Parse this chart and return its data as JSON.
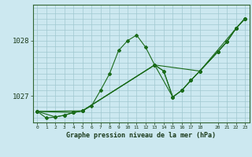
{
  "title": "Graphe pression niveau de la mer (hPa)",
  "bg_color": "#cce8f0",
  "line_color": "#1a6b1a",
  "grid_color": "#a0c8d0",
  "xlim": [
    -0.5,
    23.5
  ],
  "ylim": [
    1026.52,
    1028.65
  ],
  "yticks": [
    1027,
    1028
  ],
  "xticks": [
    0,
    1,
    2,
    3,
    4,
    5,
    6,
    7,
    8,
    9,
    10,
    11,
    12,
    13,
    14,
    15,
    16,
    17,
    18,
    20,
    21,
    22,
    23
  ],
  "hgrid_vals": [
    1026.6,
    1026.7,
    1026.8,
    1026.9,
    1027.0,
    1027.1,
    1027.2,
    1027.3,
    1027.4,
    1027.5,
    1027.6,
    1027.7,
    1027.8,
    1027.9,
    1028.0,
    1028.1,
    1028.2,
    1028.3,
    1028.4,
    1028.5,
    1028.6
  ],
  "line1_x": [
    0,
    1,
    2,
    3,
    4,
    5,
    6,
    7,
    8,
    9,
    10,
    11,
    12,
    13,
    14,
    15,
    16,
    17,
    18,
    20,
    21,
    22,
    23
  ],
  "line1_y": [
    1026.72,
    1026.6,
    1026.62,
    1026.65,
    1026.7,
    1026.73,
    1026.82,
    1027.1,
    1027.4,
    1027.82,
    1028.0,
    1028.1,
    1027.88,
    1027.56,
    1027.45,
    1026.98,
    1027.1,
    1027.28,
    1027.45,
    1027.8,
    1027.98,
    1028.22,
    1028.4
  ],
  "line2_x": [
    0,
    2,
    3,
    4,
    5,
    13,
    14,
    15,
    16,
    17,
    18,
    20,
    21,
    22,
    23
  ],
  "line2_y": [
    1026.72,
    1026.62,
    1026.65,
    1026.7,
    1026.73,
    1027.56,
    1027.45,
    1026.98,
    1027.1,
    1027.28,
    1027.45,
    1027.8,
    1027.98,
    1028.22,
    1028.4
  ],
  "line3_x": [
    0,
    4,
    5,
    13,
    15,
    16,
    17,
    18,
    20,
    21,
    22,
    23
  ],
  "line3_y": [
    1026.72,
    1026.7,
    1026.73,
    1027.56,
    1026.98,
    1027.1,
    1027.28,
    1027.45,
    1027.8,
    1027.98,
    1028.22,
    1028.4
  ],
  "line4_x": [
    0,
    5,
    13,
    18,
    22,
    23
  ],
  "line4_y": [
    1026.72,
    1026.73,
    1027.56,
    1027.45,
    1028.22,
    1028.4
  ]
}
